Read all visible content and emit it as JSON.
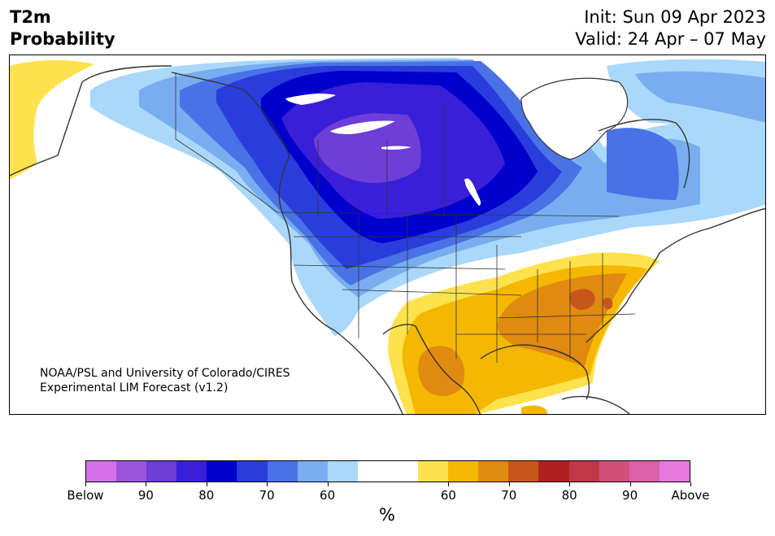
{
  "title": {
    "line1": "T2m",
    "line2": "Probability"
  },
  "dates": {
    "init": "Init: Sun 09 Apr 2023",
    "valid": "Valid: 24 Apr – 07 May"
  },
  "credit": {
    "line1": "NOAA/PSL and University of Colorado/CIRES",
    "line2": "Experimental LIM Forecast (v1.2)"
  },
  "colors": {
    "below_bin": "#d571e8",
    "b90": "#9a54dc",
    "b80": "#6d3ed8",
    "b70": "#3a1fd8",
    "b60": "#0000cc",
    "b50": "#2a3ddc",
    "b40": "#4a72e6",
    "b30": "#78aef0",
    "b20": "#aad8fa",
    "neutral": "#ffffff",
    "a20": "#ffe24d",
    "a30": "#f4b800",
    "a40": "#e08a10",
    "a50": "#c8561a",
    "a60": "#b02020",
    "a70": "#c03848",
    "a80": "#d0507a",
    "a90": "#dc60aa",
    "above_bin": "#e878de"
  },
  "colorbar": {
    "segments": [
      "#d571e8",
      "#9a54dc",
      "#6d3ed8",
      "#3a1fd8",
      "#0000cc",
      "#2a3ddc",
      "#4a72e6",
      "#78aef0",
      "#aad8fa",
      "#ffffff",
      "#ffffff",
      "#ffe24d",
      "#f4b800",
      "#e08a10",
      "#c8561a",
      "#b02020",
      "#c03848",
      "#d0507a",
      "#dc60aa",
      "#e878de"
    ],
    "labels": [
      "Below",
      "90",
      "80",
      "70",
      "60",
      "60",
      "70",
      "80",
      "90",
      "Above"
    ],
    "unit": "%"
  }
}
